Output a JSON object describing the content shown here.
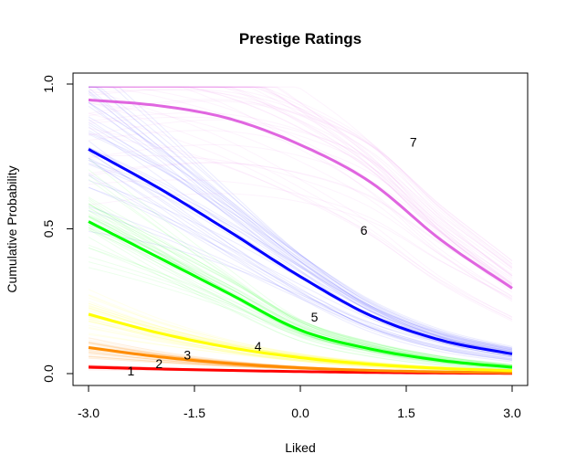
{
  "chart_data": {
    "type": "line",
    "title": "Prestige Ratings",
    "xlabel": "Liked",
    "ylabel": "Cumulative Probability",
    "xlim": [
      -3.0,
      3.0
    ],
    "ylim": [
      0.0,
      1.0
    ],
    "x_ticks": [
      "-3.0",
      "-1.5",
      "0.0",
      "1.5",
      "3.0"
    ],
    "y_ticks": [
      "0.0",
      "0.5",
      "1.0"
    ],
    "x_tick_values": [
      -3.0,
      -1.5,
      0.0,
      1.5,
      3.0
    ],
    "y_tick_values": [
      0.0,
      0.5,
      1.0
    ],
    "grid": false,
    "legend": "none",
    "series": [
      {
        "label": "1",
        "color": "#ff0000",
        "label_x": -2.4,
        "label_y": 0.01,
        "x": [
          -3.0,
          -2.0,
          -1.0,
          0.0,
          1.0,
          2.0,
          3.0
        ],
        "y": [
          0.022,
          0.016,
          0.011,
          0.007,
          0.004,
          0.002,
          0.001
        ]
      },
      {
        "label": "2",
        "color": "#ff8c00",
        "label_x": -2.0,
        "label_y": 0.035,
        "x": [
          -3.0,
          -2.0,
          -1.0,
          0.0,
          1.0,
          2.0,
          3.0
        ],
        "y": [
          0.09,
          0.058,
          0.035,
          0.02,
          0.011,
          0.006,
          0.003
        ]
      },
      {
        "label": "3",
        "color": "#ffff00",
        "label_x": -1.6,
        "label_y": 0.065,
        "x": [
          -3.0,
          -2.0,
          -1.0,
          0.0,
          1.0,
          2.0,
          3.0
        ],
        "y": [
          0.205,
          0.14,
          0.09,
          0.055,
          0.032,
          0.018,
          0.01
        ]
      },
      {
        "label": "4",
        "color": "#00ff00",
        "label_x": -0.6,
        "label_y": 0.095,
        "x": [
          -3.0,
          -2.0,
          -1.0,
          0.0,
          1.0,
          2.0,
          3.0
        ],
        "y": [
          0.525,
          0.4,
          0.275,
          0.15,
          0.085,
          0.045,
          0.022
        ]
      },
      {
        "label": "5",
        "color": "#0000ff",
        "label_x": 0.2,
        "label_y": 0.195,
        "x": [
          -3.0,
          -2.0,
          -1.0,
          0.0,
          1.0,
          2.0,
          3.0
        ],
        "y": [
          0.775,
          0.64,
          0.49,
          0.335,
          0.2,
          0.115,
          0.068
        ]
      },
      {
        "label": "6",
        "color": "#e066e0",
        "label_x": 0.9,
        "label_y": 0.495,
        "x": [
          -3.0,
          -2.0,
          -1.0,
          0.0,
          1.0,
          2.0,
          3.0
        ],
        "y": [
          0.945,
          0.925,
          0.88,
          0.79,
          0.66,
          0.46,
          0.295
        ]
      },
      {
        "label": "7",
        "color": "#000000",
        "label_x": 1.6,
        "label_y": 0.8,
        "x": [],
        "y": []
      }
    ]
  }
}
